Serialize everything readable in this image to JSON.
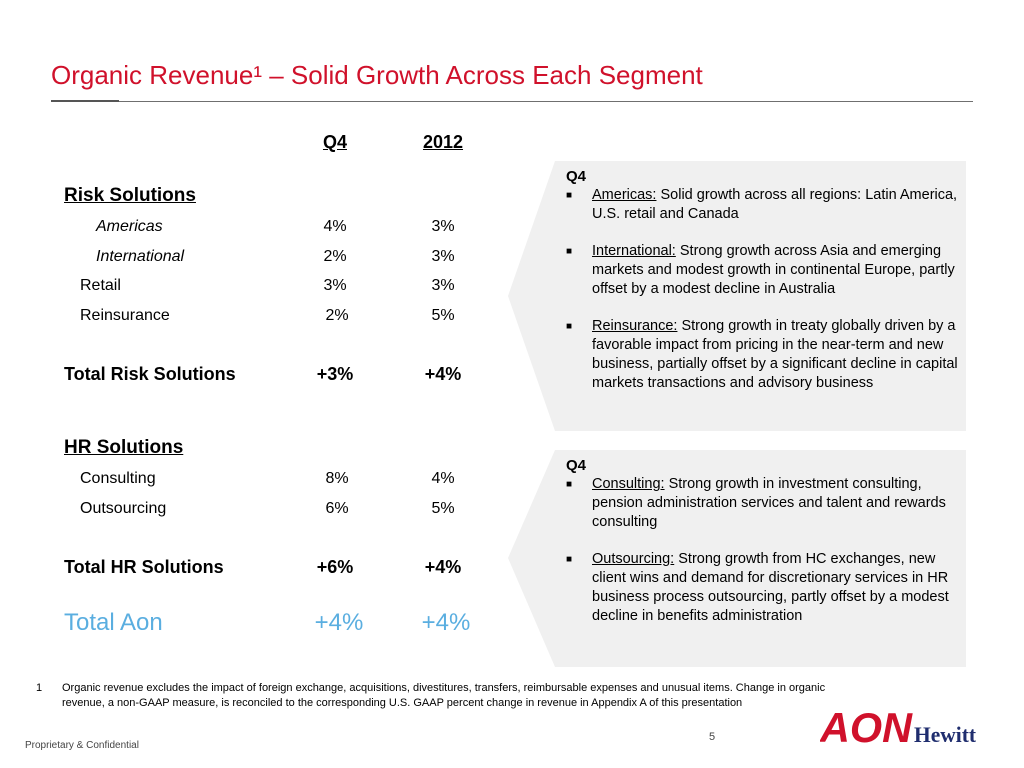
{
  "title": "Organic Revenue¹ – Solid Growth Across Each Segment",
  "columns": {
    "q4": "Q4",
    "year": "2012"
  },
  "risk": {
    "heading": "Risk Solutions",
    "rows": [
      {
        "label": "Americas",
        "q4": "4%",
        "year": "3%"
      },
      {
        "label": "International",
        "q4": "2%",
        "year": "3%"
      },
      {
        "label": "Retail",
        "q4": "3%",
        "year": "3%"
      },
      {
        "label": "Reinsurance",
        "q4": "2%",
        "year": "5%"
      }
    ],
    "total": {
      "label": "Total Risk Solutions",
      "q4": "+3%",
      "year": "+4%"
    }
  },
  "hr": {
    "heading": "HR Solutions",
    "rows": [
      {
        "label": "Consulting",
        "q4": "8%",
        "year": "4%"
      },
      {
        "label": "Outsourcing",
        "q4": "6%",
        "year": "5%"
      }
    ],
    "total": {
      "label": "Total HR Solutions",
      "q4": "+6%",
      "year": "+4%"
    }
  },
  "aon_total": {
    "label": "Total Aon",
    "q4": "+4%",
    "year": "+4%"
  },
  "panel_risk": {
    "heading": "Q4",
    "bullets": [
      {
        "label": "Americas:",
        "text": " Solid growth across all regions:  Latin America, U.S. retail and Canada"
      },
      {
        "label": "International:",
        "text": " Strong growth across Asia and emerging markets and modest growth in continental Europe, partly offset by  a modest decline in Australia"
      },
      {
        "label": "Reinsurance:",
        "text": " Strong growth in treaty globally driven by a favorable impact from pricing in the near-term and new business, partially offset by a significant decline in capital markets transactions and advisory business"
      }
    ]
  },
  "panel_hr": {
    "heading": "Q4",
    "bullets": [
      {
        "label": "Consulting:",
        "text": " Strong growth in investment consulting, pension administration services and talent and rewards consulting"
      },
      {
        "label": "Outsourcing:",
        "text": " Strong growth from  HC exchanges, new client wins and demand for discretionary services in HR business process outsourcing, partly offset by a modest decline in benefits administration"
      }
    ]
  },
  "footnote": {
    "number": "1",
    "text": "Organic revenue excludes the impact of foreign exchange, acquisitions, divestitures, transfers, reimbursable expenses and unusual items.  Change in organic revenue, a non-GAAP measure, is reconciled to the corresponding U.S. GAAP percent change in revenue in Appendix A of this presentation"
  },
  "page_number": "5",
  "confidential": "Proprietary & Confidential",
  "logo": {
    "text_aon": "AON",
    "text_hewitt": "Hewitt",
    "color": "#d0112b"
  },
  "colors": {
    "title": "#d0112b",
    "total_aon": "#5aaee0",
    "panel_bg": "#f0f0f0"
  }
}
